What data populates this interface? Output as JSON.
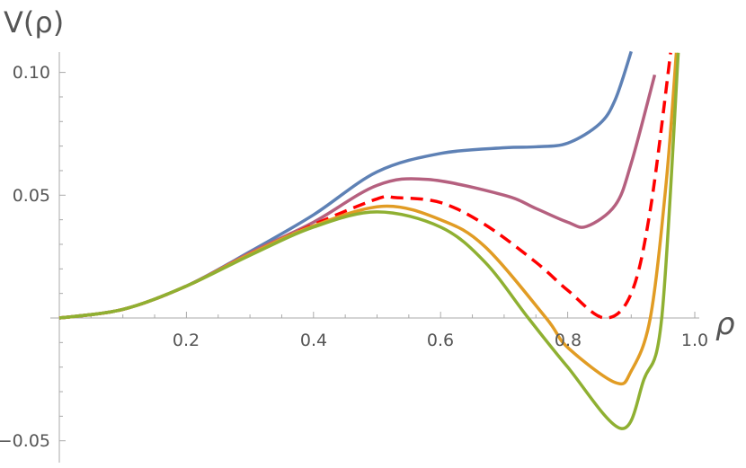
{
  "chart_data": {
    "type": "line",
    "xlabel": "ρ",
    "ylabel": "V(ρ)",
    "xlim": [
      0,
      1.0
    ],
    "ylim": [
      -0.056,
      0.108
    ],
    "xticks": [
      "0.2",
      "0.4",
      "0.6",
      "0.8",
      "1.0"
    ],
    "yticks": [
      "0.10",
      "0.05",
      "−0.05"
    ],
    "grid": false,
    "series": [
      {
        "color": "#5e81b5",
        "dashed": false,
        "x": [
          0,
          0.1,
          0.2,
          0.3,
          0.4,
          0.5,
          0.6,
          0.7,
          0.75,
          0.8,
          0.85,
          0.875,
          0.9
        ],
        "y": [
          0,
          0.0035,
          0.013,
          0.027,
          0.042,
          0.0595,
          0.067,
          0.0693,
          0.0697,
          0.0712,
          0.079,
          0.089,
          0.1085
        ]
      },
      {
        "color": "#b5607f",
        "dashed": false,
        "x": [
          0,
          0.1,
          0.2,
          0.3,
          0.4,
          0.5,
          0.58,
          0.7,
          0.75,
          0.8,
          0.83,
          0.875,
          0.9,
          0.937
        ],
        "y": [
          0,
          0.0035,
          0.013,
          0.0265,
          0.039,
          0.054,
          0.0564,
          0.05,
          0.0446,
          0.039,
          0.0373,
          0.046,
          0.063,
          0.099
        ]
      },
      {
        "color": "#ff0000",
        "dashed": true,
        "x": [
          0,
          0.1,
          0.2,
          0.3,
          0.4,
          0.5,
          0.53,
          0.6,
          0.67,
          0.75,
          0.8,
          0.858,
          0.9,
          0.93,
          0.962
        ],
        "y": [
          0,
          0.0035,
          0.013,
          0.026,
          0.038,
          0.0485,
          0.049,
          0.047,
          0.038,
          0.0227,
          0.0113,
          0,
          0.01,
          0.044,
          0.108
        ]
      },
      {
        "color": "#e19c24",
        "dashed": false,
        "x": [
          0,
          0.1,
          0.2,
          0.3,
          0.4,
          0.51,
          0.6,
          0.67,
          0.766,
          0.8,
          0.875,
          0.9,
          0.93,
          0.955,
          0.971
        ],
        "y": [
          0,
          0.0035,
          0.013,
          0.026,
          0.0375,
          0.0455,
          0.04,
          0.029,
          0,
          -0.012,
          -0.0263,
          -0.0216,
          0,
          0.055,
          0.108
        ]
      },
      {
        "color": "#8fb032",
        "dashed": false,
        "x": [
          0,
          0.1,
          0.2,
          0.3,
          0.4,
          0.5,
          0.6,
          0.67,
          0.738,
          0.8,
          0.884,
          0.92,
          0.948,
          0.974
        ],
        "y": [
          0,
          0.0035,
          0.013,
          0.0255,
          0.037,
          0.0432,
          0.037,
          0.0227,
          0,
          -0.02,
          -0.045,
          -0.025,
          0,
          0.108
        ]
      }
    ]
  }
}
